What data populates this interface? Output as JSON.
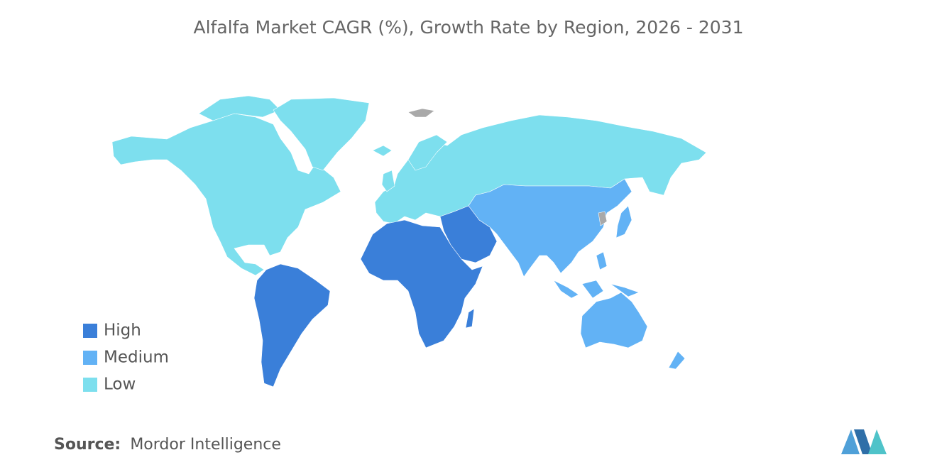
{
  "title": "Alfalfa Market CAGR (%), Growth Rate by Region, 2026 - 2031",
  "legend": [
    {
      "label": "High",
      "color": "#3a7fd9"
    },
    {
      "label": "Medium",
      "color": "#62b2f5"
    },
    {
      "label": "Low",
      "color": "#7ddfee"
    }
  ],
  "source": {
    "label": "Source:",
    "text": "Mordor Intelligence"
  }
}
